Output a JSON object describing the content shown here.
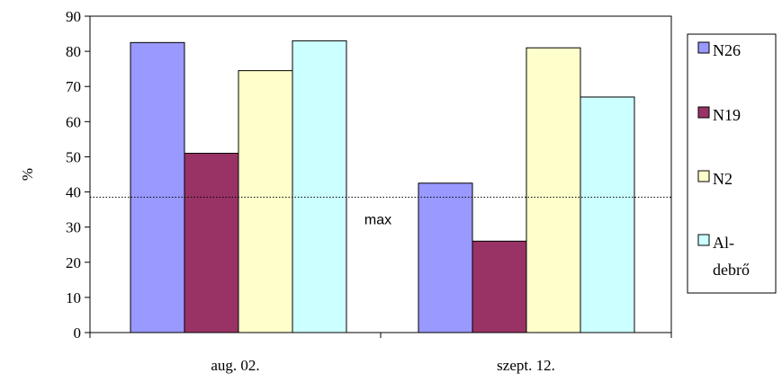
{
  "chart_data": {
    "type": "bar",
    "categories": [
      "aug. 02.",
      "szept. 12."
    ],
    "series": [
      {
        "name": "N26",
        "values": [
          82.5,
          42.5
        ],
        "color": "#9999ff"
      },
      {
        "name": "N19",
        "values": [
          51,
          26
        ],
        "color": "#993366"
      },
      {
        "name": "N2",
        "values": [
          74.5,
          81
        ],
        "color": "#ffffcc"
      },
      {
        "name": "Al-debrő",
        "values": [
          83,
          67
        ],
        "color": "#ccffff"
      }
    ],
    "legend_labels": [
      [
        "N26"
      ],
      [
        "N19"
      ],
      [
        "N2"
      ],
      [
        "Al-",
        "debrő"
      ]
    ],
    "ylabel": "%",
    "ylim": [
      0,
      90
    ],
    "yticks": [
      "0",
      "10",
      "20",
      "30",
      "40",
      "50",
      "60",
      "70",
      "80",
      "90"
    ],
    "reference_line": {
      "value": 38.5,
      "label": "max",
      "style": "dotted"
    },
    "grid": false,
    "legend_position": "right"
  }
}
